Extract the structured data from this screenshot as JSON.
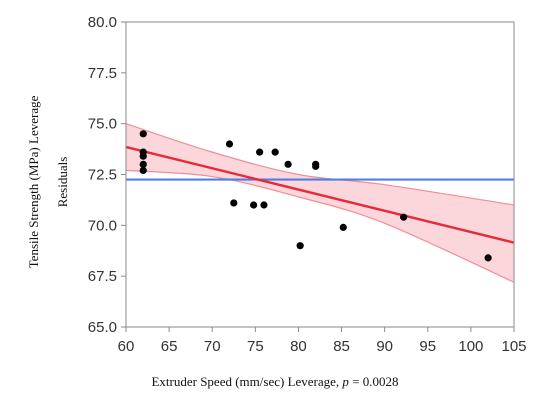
{
  "chart_data": {
    "type": "scatter",
    "ylabel_line1": "Tensile Strength (MPa) Leverage",
    "ylabel_line2": "Residuals",
    "xlabel_main": "Extruder Speed (mm/sec) Leverage, ",
    "xlabel_p": "p",
    "xlabel_p_value": " = 0.0028",
    "xlim": [
      60,
      105
    ],
    "ylim": [
      65.0,
      80.0
    ],
    "x_ticks": [
      60,
      65,
      70,
      75,
      80,
      85,
      90,
      95,
      100,
      105
    ],
    "y_ticks": [
      "65.0",
      "67.5",
      "70.0",
      "72.5",
      "75.0",
      "77.5",
      "80.0"
    ],
    "points": [
      {
        "x": 62,
        "y": 74.5
      },
      {
        "x": 62,
        "y": 73.6
      },
      {
        "x": 62,
        "y": 73.4
      },
      {
        "x": 62,
        "y": 73.0
      },
      {
        "x": 62,
        "y": 72.7
      },
      {
        "x": 72,
        "y": 74.0
      },
      {
        "x": 72.5,
        "y": 71.1
      },
      {
        "x": 74.8,
        "y": 71.0
      },
      {
        "x": 75.5,
        "y": 73.6
      },
      {
        "x": 76,
        "y": 71.0
      },
      {
        "x": 77.3,
        "y": 73.6
      },
      {
        "x": 78.8,
        "y": 73.0
      },
      {
        "x": 80.2,
        "y": 69.0
      },
      {
        "x": 82,
        "y": 73.0
      },
      {
        "x": 82,
        "y": 72.9
      },
      {
        "x": 85.2,
        "y": 69.9
      },
      {
        "x": 92.2,
        "y": 70.4
      },
      {
        "x": 102,
        "y": 68.4
      }
    ],
    "mean_line_y": 72.25,
    "fit_line": {
      "x": [
        60,
        105
      ],
      "y": [
        73.85,
        69.15
      ]
    },
    "confidence_band": {
      "x": [
        60,
        70,
        80,
        90,
        105
      ],
      "upper": [
        75.0,
        73.6,
        72.5,
        72.0,
        71.0
      ],
      "lower": [
        72.7,
        72.4,
        71.4,
        70.1,
        67.2
      ]
    },
    "grid": false,
    "legend": "none",
    "colors": {
      "points": "#000000",
      "fit_line": "#e8293a",
      "band_fill": "#f9c8cd",
      "band_edge": "#f08e99",
      "mean_line": "#4f7fe3",
      "frame": "#8a8a8a",
      "background": "#ffffff"
    }
  }
}
